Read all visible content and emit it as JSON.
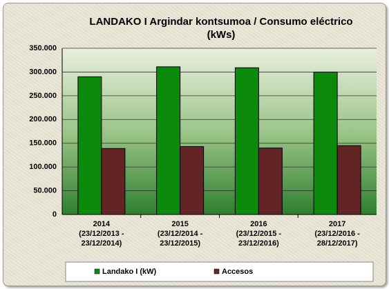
{
  "chart_data": {
    "type": "bar",
    "title": "LANDAKO I Argindar kontsumoa / Consumo eléctrico (kWs)",
    "categories": [
      "2014\n(23/12/2013 -\n23/12/2014)",
      "2015\n(23/12/2014 -\n23/12/2015)",
      "2016\n(23/12/2015 -\n23/12/2016)",
      "2017\n(23/12/2016 -\n28/12/2017)"
    ],
    "series": [
      {
        "name": "Landako I (kW)",
        "color": "#0b8a0b",
        "values": [
          290000,
          311000,
          309000,
          300000
        ]
      },
      {
        "name": "Accesos",
        "color": "#632523",
        "values": [
          139000,
          143000,
          140000,
          145000
        ]
      }
    ],
    "ylim": [
      0,
      350000
    ],
    "yticks": [
      0,
      {
        "value": 50000,
        "label": "50.000"
      },
      {
        "value": 100000,
        "label": "100.000"
      },
      {
        "value": 150000,
        "label": "150.000"
      },
      {
        "value": 200000,
        "label": "200.000"
      },
      {
        "value": 250000,
        "label": "250.000"
      },
      {
        "value": 300000,
        "label": "300.000"
      },
      {
        "value": 350000,
        "label": "350.000"
      }
    ],
    "grid": true,
    "legend": "bottom"
  }
}
